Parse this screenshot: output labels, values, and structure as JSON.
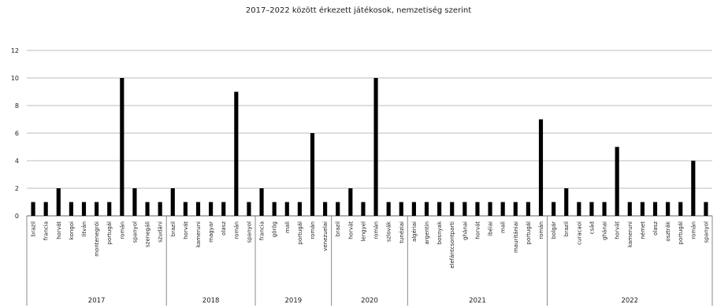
{
  "chart_data": {
    "type": "bar",
    "title": "2017–2022 között érkezett játékosok, nemzetiség szerint",
    "xlabel": "",
    "ylabel": "",
    "ylim": [
      0,
      12
    ],
    "yticks": [
      0,
      2,
      4,
      6,
      8,
      10,
      12
    ],
    "grid": true,
    "bar_color": "#000000",
    "groups": [
      {
        "label": "2017",
        "categories": [
          "brazil",
          "francia",
          "horvát",
          "kongoi",
          "litván",
          "montenegrói",
          "portugál",
          "román",
          "spanyol",
          "szenegáli",
          "szudáni"
        ],
        "values": [
          1,
          1,
          2,
          1,
          1,
          1,
          1,
          10,
          2,
          1,
          1
        ]
      },
      {
        "label": "2018",
        "categories": [
          "brazil",
          "horvát",
          "kameruni",
          "magyar",
          "olasz",
          "román",
          "spanyol"
        ],
        "values": [
          2,
          1,
          1,
          1,
          1,
          9,
          1
        ]
      },
      {
        "label": "2019",
        "categories": [
          "francia",
          "görög",
          "mali",
          "portugál",
          "román",
          "venezuelai"
        ],
        "values": [
          2,
          1,
          1,
          1,
          6,
          1
        ]
      },
      {
        "label": "2020",
        "categories": [
          "brazil",
          "horvát",
          "lengyel",
          "román",
          "szlovák",
          "tunéziai"
        ],
        "values": [
          1,
          2,
          1,
          10,
          1,
          1
        ]
      },
      {
        "label": "2021",
        "categories": [
          "algériai",
          "argentin",
          "bosnyak",
          "elefántcsontparti",
          "ghánai",
          "horvát",
          "ibéiai",
          "mali",
          "mauritániai",
          "portugál",
          "román"
        ],
        "values": [
          1,
          1,
          1,
          1,
          1,
          1,
          1,
          1,
          1,
          1,
          7
        ]
      },
      {
        "label": "2022",
        "categories": [
          "bolgár",
          "brazil",
          "curacaoi",
          "csád",
          "ghánai",
          "horvát",
          "kameruni",
          "német",
          "olasz",
          "osztrák",
          "portugál",
          "román",
          "spanyol"
        ],
        "values": [
          1,
          2,
          1,
          1,
          1,
          5,
          1,
          1,
          1,
          1,
          1,
          4,
          1
        ]
      }
    ]
  }
}
